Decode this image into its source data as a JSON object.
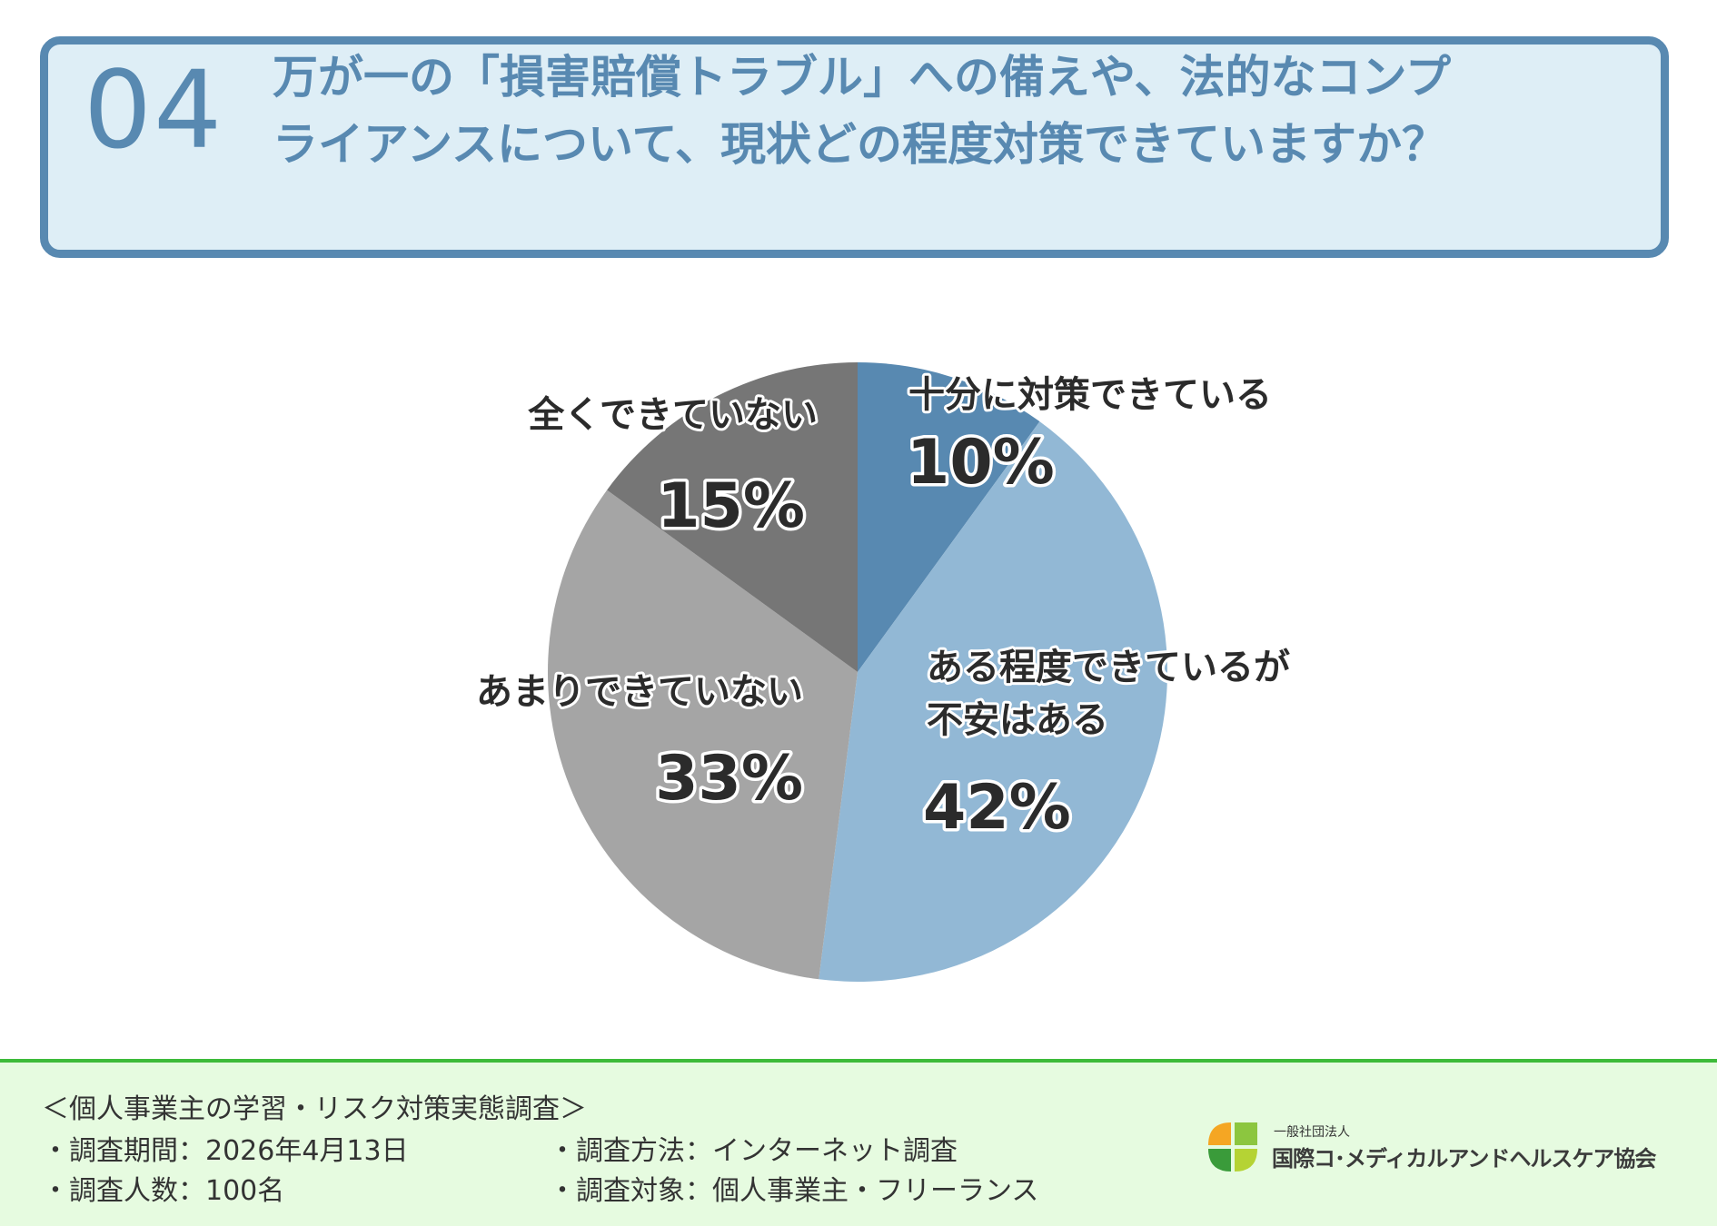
{
  "question": {
    "number": "04",
    "line1": "万が一の「損害賠償トラブル」への備えや、法的なコンプ",
    "line2": "ライアンスについて、現状どの程度対策できていますか？"
  },
  "chart_data": {
    "type": "pie",
    "title": "",
    "slices": [
      {
        "label": "十分に対策できている",
        "value": 10,
        "value_label": "10%",
        "color": "#5889b1"
      },
      {
        "label": "ある程度できているが不安はある",
        "value": 42,
        "value_label": "42%",
        "color": "#92b8d5"
      },
      {
        "label": "あまりできていない",
        "value": 33,
        "value_label": "33%",
        "color": "#a5a5a5"
      },
      {
        "label": "全くできていない",
        "value": 15,
        "value_label": "15%",
        "color": "#767676"
      }
    ],
    "start": "12 o'clock, clockwise"
  },
  "footer": {
    "survey_title": "＜個人事業主の学習・リスク対策実態調査＞",
    "period": "・調査期間：2026年4月13日",
    "count": "・調査人数：100名",
    "method": "・調査方法：インターネット調査",
    "target": "・調査対象：個人事業主・フリーランス"
  },
  "logo": {
    "small": "一般社団法人",
    "name": "国際コ･メディカルアンドヘルスケア協会",
    "colors": [
      "#f5a623",
      "#8cc63f",
      "#3a9b3a",
      "#b5d334"
    ]
  }
}
